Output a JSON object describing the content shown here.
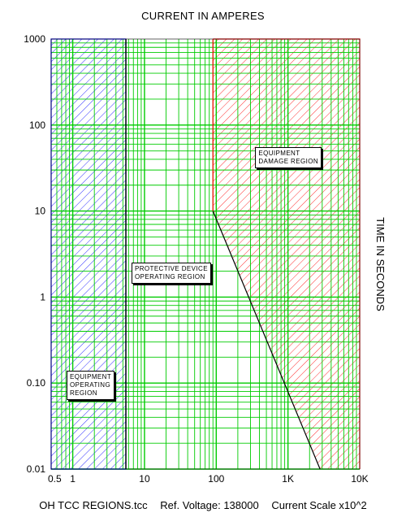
{
  "header": {
    "x_axis_title": "CURRENT IN AMPERES"
  },
  "side": {
    "y_axis_title": "TIME IN SECONDS"
  },
  "footer": {
    "file_name": "OH TCC REGIONS.tcc",
    "ref_voltage": "Ref. Voltage: 138000",
    "current_scale": "Current Scale x10^2"
  },
  "chart_data": {
    "type": "area",
    "x_scale": "log",
    "y_scale": "log",
    "xlim": [
      0.5,
      10000
    ],
    "ylim": [
      0.01,
      1000
    ],
    "grid": true,
    "x_tick_labels": [
      {
        "value": 0.5,
        "label": "0.5"
      },
      {
        "value": 1,
        "label": "1"
      },
      {
        "value": 10,
        "label": "10"
      },
      {
        "value": 100,
        "label": "100"
      },
      {
        "value": 1000,
        "label": "1K"
      },
      {
        "value": 10000,
        "label": "10K"
      }
    ],
    "y_tick_labels": [
      {
        "value": 1000,
        "label": "1000"
      },
      {
        "value": 100,
        "label": "100"
      },
      {
        "value": 10,
        "label": "10"
      },
      {
        "value": 1,
        "label": "1"
      },
      {
        "value": 0.1,
        "label": "0.10"
      },
      {
        "value": 0.01,
        "label": "0.01"
      }
    ],
    "regions": [
      {
        "label": "EQUIPMENT OPERATING REGION",
        "lines": [
          "EQUIPMENT",
          "OPERATING",
          "REGION"
        ],
        "color": "#0000ff",
        "x_range": [
          0.5,
          5.5
        ],
        "label_at": [
          0.82,
          0.14
        ]
      },
      {
        "label": "PROTECTIVE DEVICE OPERATING REGION",
        "lines": [
          "PROTECTIVE DEVICE",
          "OPERATING REGION"
        ],
        "color": "#00cc00",
        "x_range": [
          5.5,
          10000
        ],
        "label_at": [
          6.6,
          2.5
        ]
      },
      {
        "label": "EQUIPMENT DAMAGE REGION",
        "lines": [
          "EQUIPMENT",
          "DAMAGE REGION"
        ],
        "color": "#ff0000",
        "boundary": [
          [
            90,
            1000
          ],
          [
            90,
            10
          ],
          [
            2800,
            0.01
          ]
        ],
        "label_at": [
          350,
          55
        ]
      }
    ],
    "curve": {
      "color": "#000000",
      "points": [
        [
          90,
          10
        ],
        [
          2800,
          0.01
        ]
      ]
    },
    "divider": {
      "color": "#000000",
      "x": 5.5
    }
  }
}
